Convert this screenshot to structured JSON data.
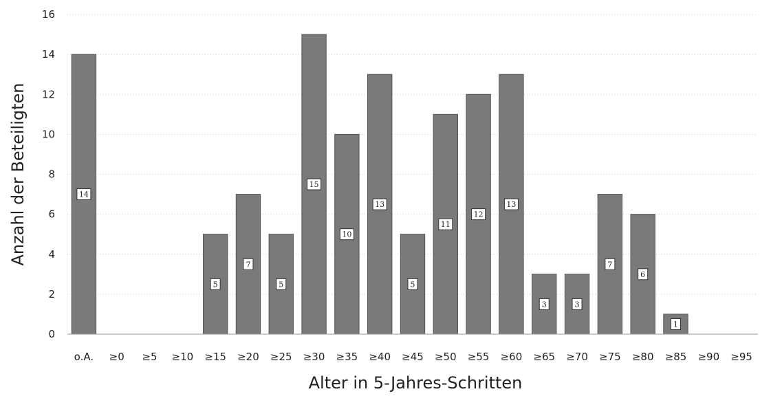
{
  "chart_data": {
    "type": "bar",
    "categories": [
      "o.A.",
      "≥0",
      "≥5",
      "≥10",
      "≥15",
      "≥20",
      "≥25",
      "≥30",
      "≥35",
      "≥40",
      "≥45",
      "≥50",
      "≥55",
      "≥60",
      "≥65",
      "≥70",
      "≥75",
      "≥80",
      "≥85",
      "≥90",
      "≥95"
    ],
    "values": [
      14,
      0,
      0,
      0,
      5,
      7,
      5,
      15,
      10,
      13,
      5,
      11,
      12,
      13,
      3,
      3,
      7,
      6,
      1,
      0,
      0
    ],
    "xlabel": "Alter in 5-Jahres-Schritten",
    "ylabel": "Anzahl der Beteiligten",
    "ylim": [
      0,
      16
    ],
    "yticks": [
      0,
      2,
      4,
      6,
      8,
      10,
      12,
      14,
      16
    ],
    "grid": true,
    "legend": "none",
    "bar_color": "#7a7a7a"
  }
}
